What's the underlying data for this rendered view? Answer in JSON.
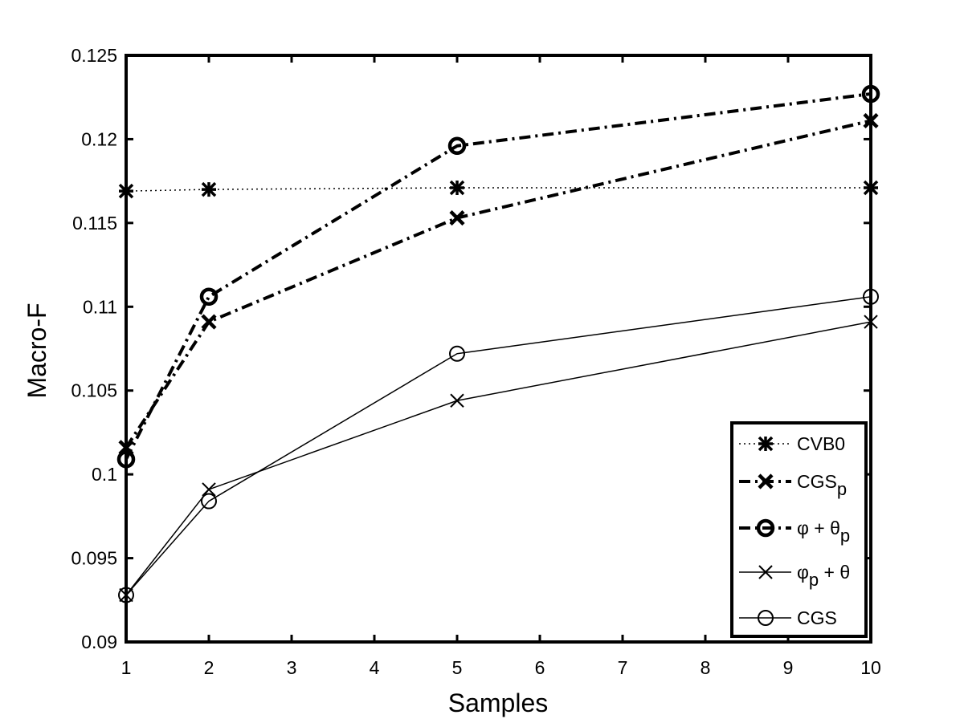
{
  "chart_data": {
    "type": "line",
    "title": "",
    "xlabel": "Samples",
    "ylabel": "Macro-F",
    "xlim": [
      1,
      10
    ],
    "ylim": [
      0.09,
      0.125
    ],
    "xticks": [
      1,
      2,
      3,
      4,
      5,
      6,
      7,
      8,
      9,
      10
    ],
    "yticks": [
      0.09,
      0.095,
      0.1,
      0.105,
      0.11,
      0.115,
      0.12,
      0.125
    ],
    "ytick_labels": [
      "0.09",
      "0.095",
      "0.1",
      "0.105",
      "0.11",
      "0.115",
      "0.12",
      "0.125"
    ],
    "grid": false,
    "legend_position": "bottom-right",
    "x": [
      1,
      2,
      5,
      10
    ],
    "series": [
      {
        "name": "CVB0",
        "legend_main": "CVB0",
        "legend_sub": "",
        "legend_tail": "",
        "values": [
          0.1169,
          0.117,
          0.1171,
          0.1171
        ],
        "marker": "star",
        "line_style": "dotted",
        "weight": "thin"
      },
      {
        "name": "CGS_p",
        "legend_main": "CGS",
        "legend_sub": "p",
        "legend_tail": "",
        "values": [
          0.1016,
          0.1091,
          0.1153,
          0.1211
        ],
        "marker": "x",
        "line_style": "dashdot",
        "weight": "bold"
      },
      {
        "name": "phi + theta_p",
        "legend_main": "φ + θ",
        "legend_sub": "p",
        "legend_tail": "",
        "values": [
          0.1009,
          0.1106,
          0.1196,
          0.1227
        ],
        "marker": "circle",
        "line_style": "dashdot",
        "weight": "bold"
      },
      {
        "name": "phi_p + theta",
        "legend_main": "φ",
        "legend_sub": "p",
        "legend_tail": " + θ",
        "values": [
          0.0928,
          0.0991,
          0.1044,
          0.1091
        ],
        "marker": "x",
        "line_style": "solid",
        "weight": "thin"
      },
      {
        "name": "CGS",
        "legend_main": "CGS",
        "legend_sub": "",
        "legend_tail": "",
        "values": [
          0.0928,
          0.0984,
          0.1072,
          0.1106
        ],
        "marker": "circle",
        "line_style": "solid",
        "weight": "thin"
      }
    ]
  }
}
